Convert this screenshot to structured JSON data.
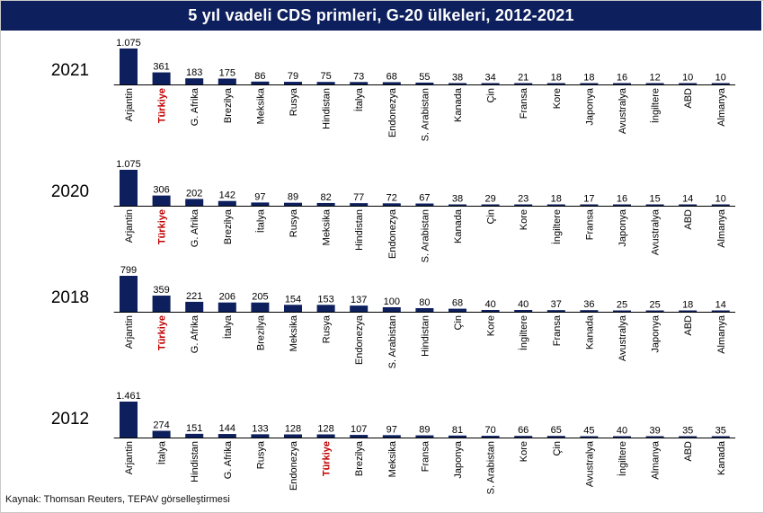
{
  "title": "5 yıl vadeli CDS primleri, G-20 ülkeleri, 2012-2021",
  "source": "Kaynak: Thomsan Reuters, TEPAV görselleştirmesi",
  "colors": {
    "bar": "#0d1f5c",
    "title_bg": "#0d1f5c",
    "highlight": "#c00000",
    "axis": "#000000"
  },
  "highlight_label": "Türkiye",
  "chart_data": [
    {
      "type": "bar",
      "title": "2021",
      "categories": [
        "Arjantin",
        "Türkiye",
        "G. Afrika",
        "Brezilya",
        "Meksika",
        "Rusya",
        "Hindistan",
        "İtalya",
        "Endonezya",
        "S. Arabistan",
        "Kanada",
        "Çin",
        "Fransa",
        "Kore",
        "Japonya",
        "Avustralya",
        "İngiltere",
        "ABD",
        "Almanya"
      ],
      "values": [
        1075,
        361,
        183,
        175,
        86,
        79,
        75,
        73,
        68,
        55,
        38,
        34,
        21,
        18,
        18,
        16,
        12,
        10,
        10
      ],
      "labels": [
        "1.075",
        "361",
        "183",
        "175",
        "86",
        "79",
        "75",
        "73",
        "68",
        "55",
        "38",
        "34",
        "21",
        "18",
        "18",
        "16",
        "12",
        "10",
        "10"
      ]
    },
    {
      "type": "bar",
      "title": "2020",
      "categories": [
        "Arjantin",
        "Türkiye",
        "G. Afrika",
        "Brezilya",
        "İtalya",
        "Rusya",
        "Meksika",
        "Hindistan",
        "Endonezya",
        "S. Arabistan",
        "Kanada",
        "Çin",
        "Kore",
        "İngiltere",
        "Fransa",
        "Japonya",
        "Avustralya",
        "ABD",
        "Almanya"
      ],
      "values": [
        1075,
        306,
        202,
        142,
        97,
        89,
        82,
        77,
        72,
        67,
        38,
        29,
        23,
        18,
        17,
        16,
        15,
        14,
        10
      ],
      "labels": [
        "1.075",
        "306",
        "202",
        "142",
        "97",
        "89",
        "82",
        "77",
        "72",
        "67",
        "38",
        "29",
        "23",
        "18",
        "17",
        "16",
        "15",
        "14",
        "10"
      ]
    },
    {
      "type": "bar",
      "title": "2018",
      "categories": [
        "Arjantin",
        "Türkiye",
        "G. Afrika",
        "İtalya",
        "Brezilya",
        "Meksika",
        "Rusya",
        "Endonezya",
        "S. Arabistan",
        "Hindistan",
        "Çin",
        "Kore",
        "İngiltere",
        "Fransa",
        "Kanada",
        "Avustralya",
        "Japonya",
        "ABD",
        "Almanya"
      ],
      "values": [
        799,
        359,
        221,
        206,
        205,
        154,
        153,
        137,
        100,
        80,
        68,
        40,
        40,
        37,
        36,
        25,
        25,
        18,
        14
      ],
      "labels": [
        "799",
        "359",
        "221",
        "206",
        "205",
        "154",
        "153",
        "137",
        "100",
        "80",
        "68",
        "40",
        "40",
        "37",
        "36",
        "25",
        "25",
        "18",
        "14"
      ]
    },
    {
      "type": "bar",
      "title": "2012",
      "categories": [
        "Arjantin",
        "İtalya",
        "Hindistan",
        "G. Afrika",
        "Rusya",
        "Endonezya",
        "Türkiye",
        "Brezilya",
        "Meksika",
        "Fransa",
        "Japonya",
        "S. Arabistan",
        "Kore",
        "Çin",
        "Avustralya",
        "İngiltere",
        "Almanya",
        "ABD",
        "Kanada"
      ],
      "values": [
        1461,
        274,
        151,
        144,
        133,
        128,
        128,
        107,
        97,
        89,
        81,
        70,
        66,
        65,
        45,
        40,
        39,
        35,
        35
      ],
      "labels": [
        "1.461",
        "274",
        "151",
        "144",
        "133",
        "128",
        "128",
        "107",
        "97",
        "89",
        "81",
        "70",
        "66",
        "65",
        "45",
        "40",
        "39",
        "35",
        "35"
      ]
    }
  ]
}
